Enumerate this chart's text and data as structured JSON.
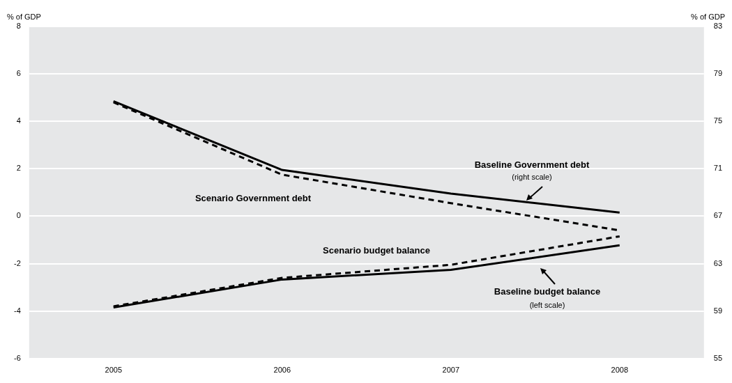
{
  "chart_data": {
    "type": "line",
    "categories": [
      "2005",
      "2006",
      "2007",
      "2008"
    ],
    "series": [
      {
        "name": "Baseline Government debt",
        "color": "#000000",
        "axis": "y2",
        "line_style": "solid",
        "values": [
          76.7,
          70.9,
          68.9,
          67.3
        ]
      },
      {
        "name": "Scenario Government debt",
        "color": "#000000",
        "axis": "y2",
        "line_style": "dashed",
        "values": [
          76.6,
          70.5,
          68.1,
          65.8
        ]
      },
      {
        "name": "Baseline budget balance",
        "color": "#000000",
        "axis": "y",
        "line_style": "solid",
        "values": [
          -3.85,
          -2.67,
          -2.26,
          -1.23
        ]
      },
      {
        "name": "Scenario budget balance",
        "color": "#000000",
        "axis": "y",
        "line_style": "dashed",
        "values": [
          -3.8,
          -2.6,
          -2.05,
          -0.85
        ]
      }
    ],
    "ylabel": "% of GDP",
    "y2label": "% of GDP",
    "ylim": [
      -6,
      8
    ],
    "yticks": [
      -6,
      -4,
      -2,
      0,
      2,
      4,
      6,
      8
    ],
    "y2lim": [
      55,
      83
    ],
    "y2ticks": [
      55,
      59,
      63,
      67,
      71,
      75,
      79,
      83
    ],
    "grid": "y",
    "marker": "none",
    "annotations": [
      "(right scale)",
      "(left scale)"
    ]
  }
}
